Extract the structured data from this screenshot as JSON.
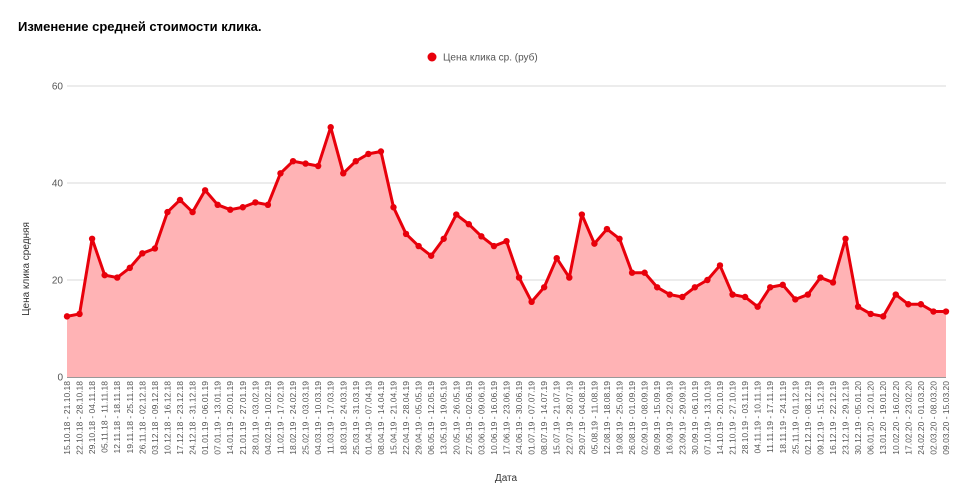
{
  "chart_data": {
    "type": "area",
    "title": "Изменение средней стоимости клика.",
    "xlabel": "Дата",
    "ylabel": "Цена клика средняя",
    "ylim": [
      0,
      60
    ],
    "yticks": [
      0,
      20,
      40,
      60
    ],
    "legend_position": "top-center",
    "grid": true,
    "categories": [
      "15.10.18 - 21.10.18",
      "22.10.18 - 28.10.18",
      "29.10.18 - 04.11.18",
      "05.11.18 - 11.11.18",
      "12.11.18 - 18.11.18",
      "19.11.18 - 25.11.18",
      "26.11.18 - 02.12.18",
      "03.12.18 - 09.12.18",
      "10.12.18 - 16.12.18",
      "17.12.18 - 23.12.18",
      "24.12.18 - 31.12.18",
      "01.01.19 - 06.01.19",
      "07.01.19 - 13.01.19",
      "14.01.19 - 20.01.19",
      "21.01.19 - 27.01.19",
      "28.01.19 - 03.02.19",
      "04.02.19 - 10.02.19",
      "11.02.19 - 17.02.19",
      "18.02.19 - 24.02.19",
      "25.02.19 - 03.03.19",
      "04.03.19 - 10.03.19",
      "11.03.19 - 17.03.19",
      "18.03.19 - 24.03.19",
      "25.03.19 - 31.03.19",
      "01.04.19 - 07.04.19",
      "08.04.19 - 14.04.19",
      "15.04.19 - 21.04.19",
      "22.04.19 - 28.04.19",
      "29.04.19 - 05.05.19",
      "06.05.19 - 12.05.19",
      "13.05.19 - 19.05.19",
      "20.05.19 - 26.05.19",
      "27.05.19 - 02.06.19",
      "03.06.19 - 09.06.19",
      "10.06.19 - 16.06.19",
      "17.06.19 - 23.06.19",
      "24.06.19 - 30.06.19",
      "01.07.19 - 07.07.19",
      "08.07.19 - 14.07.19",
      "15.07.19 - 21.07.19",
      "22.07.19 - 28.07.19",
      "29.07.19 - 04.08.19",
      "05.08.19 - 11.08.19",
      "12.08.19 - 18.08.19",
      "19.08.19 - 25.08.19",
      "26.08.19 - 01.09.19",
      "02.09.19 - 08.09.19",
      "09.09.19 - 15.09.19",
      "16.09.19 - 22.09.19",
      "23.09.19 - 29.09.19",
      "30.09.19 - 06.10.19",
      "07.10.19 - 13.10.19",
      "14.10.19 - 20.10.19",
      "21.10.19 - 27.10.19",
      "28.10.19 - 03.11.19",
      "04.11.19 - 10.11.19",
      "11.11.19 - 17.11.19",
      "18.11.19 - 24.11.19",
      "25.11.19 - 01.12.19",
      "02.12.19 - 08.12.19",
      "09.12.19 - 15.12.19",
      "16.12.19 - 22.12.19",
      "23.12.19 - 29.12.19",
      "30.12.19 - 05.01.20",
      "06.01.20 - 12.01.20",
      "13.01.20 - 19.01.20",
      "10.02.20 - 16.02.20",
      "17.02.20 - 23.02.20",
      "24.02.20 - 01.03.20",
      "02.03.20 - 08.03.20",
      "09.03.20 - 15.03.20"
    ],
    "series": [
      {
        "name": "Цена клика ср. (руб)",
        "color": "#e8000b",
        "fill": "#ffb3b5",
        "values": [
          12.5,
          13,
          28.5,
          21,
          20.5,
          22.5,
          25.5,
          26.5,
          34,
          36.5,
          34,
          38.5,
          35.5,
          34.5,
          35,
          36,
          35.5,
          42,
          44.5,
          44,
          43.5,
          51.5,
          42,
          44.5,
          46,
          46.5,
          35,
          29.5,
          27,
          25,
          28.5,
          33.5,
          31.5,
          29,
          27,
          28,
          20.5,
          15.5,
          18.5,
          24.5,
          20.5,
          33.5,
          27.5,
          30.5,
          28.5,
          21.5,
          21.5,
          18.5,
          17,
          16.5,
          18.5,
          20,
          23,
          17,
          16.5,
          14.5,
          18.5,
          19,
          16,
          17,
          20.5,
          19.5,
          28.5,
          14.5,
          13,
          12.5,
          17,
          15,
          15,
          13.5,
          13.5
        ]
      }
    ]
  }
}
